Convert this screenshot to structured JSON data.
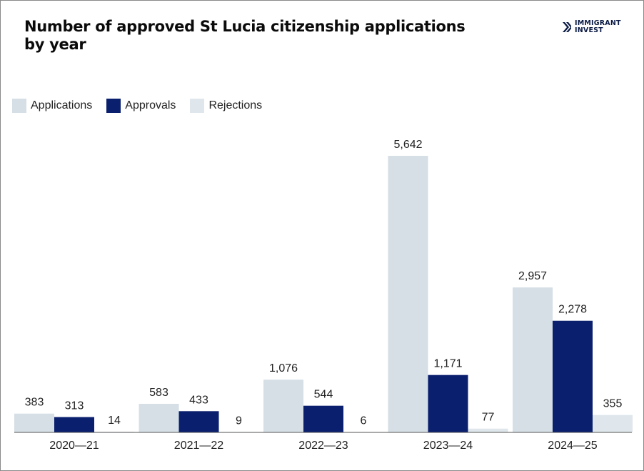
{
  "chart_data": {
    "type": "bar",
    "title": "Number of approved St Lucia citizenship applications by year",
    "categories": [
      "2020—21",
      "2021—22",
      "2022—23",
      "2023—24",
      "2024—25"
    ],
    "series": [
      {
        "name": "Applications",
        "values": [
          383,
          583,
          1076,
          5642,
          2957
        ],
        "labels": [
          "383",
          "583",
          "1,076",
          "5,642",
          "2,957"
        ]
      },
      {
        "name": "Approvals",
        "values": [
          313,
          433,
          544,
          1171,
          2278
        ],
        "labels": [
          "313",
          "433",
          "544",
          "1,171",
          "2,278"
        ]
      },
      {
        "name": "Rejections",
        "values": [
          14,
          9,
          6,
          77,
          355
        ],
        "labels": [
          "14",
          "9",
          "6",
          "77",
          "355"
        ]
      }
    ],
    "colors": [
      "#d5dfe5",
      "#0a1f6e",
      "#dfe7ec"
    ],
    "ylim": [
      0,
      5642
    ],
    "legend_position": "top-left",
    "grid": false
  },
  "brand": {
    "line1": "IMMIGRANT",
    "line2": "INVEST",
    "color": "#0a1a44"
  }
}
